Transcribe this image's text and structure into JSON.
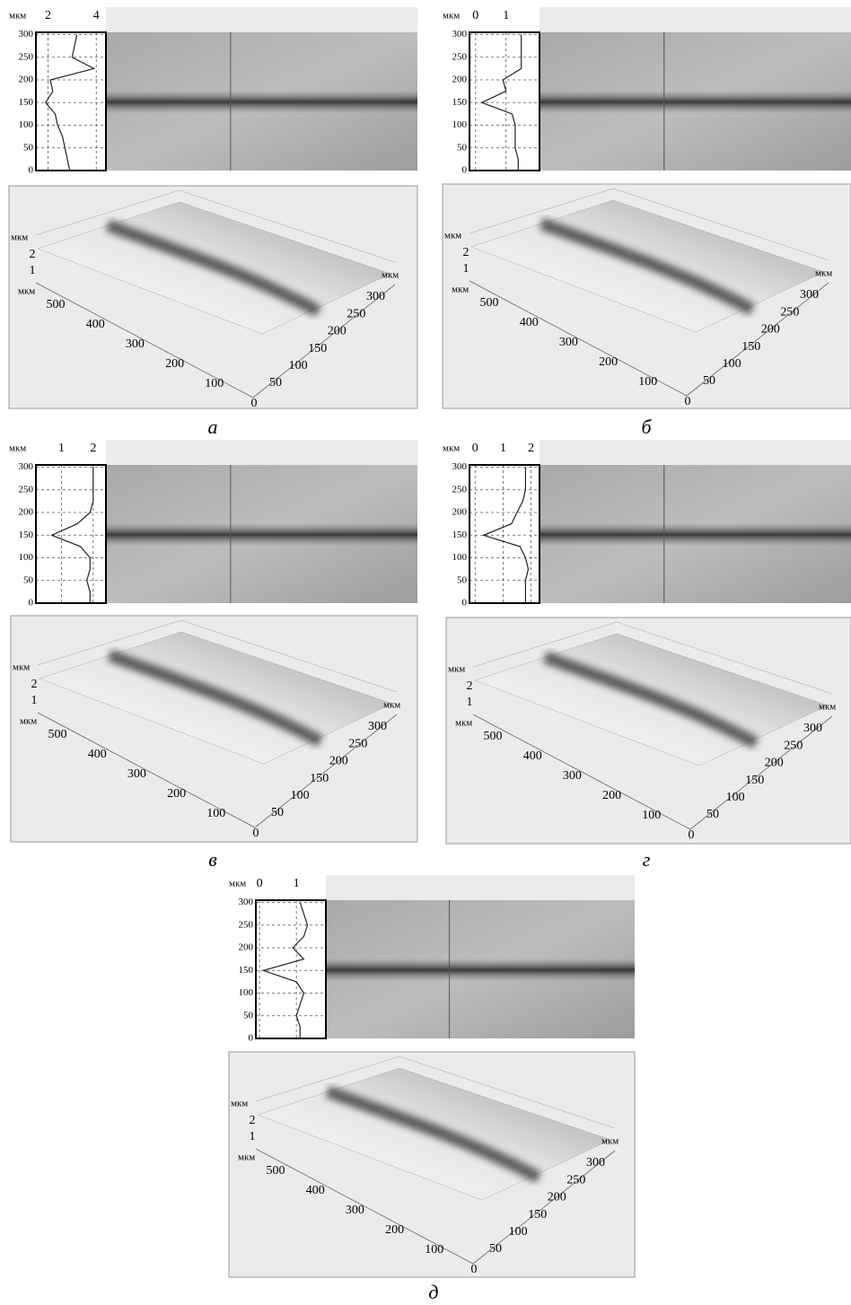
{
  "panels": [
    {
      "caption": "а",
      "profile": {
        "unit": "мкм",
        "xticks": [
          2,
          4
        ],
        "xlim": [
          1.5,
          4.4
        ],
        "yticks": [
          0,
          50,
          100,
          150,
          200,
          250,
          300
        ],
        "ylim": [
          0,
          305
        ],
        "y": [
          0,
          25,
          50,
          75,
          100,
          125,
          150,
          175,
          200,
          225,
          250,
          275,
          300
        ],
        "values": [
          2.9,
          2.8,
          2.7,
          2.6,
          2.4,
          2.3,
          1.9,
          2.2,
          2.1,
          3.9,
          3.0,
          3.1,
          3.2
        ]
      },
      "surface": {
        "z_unit": "мкм",
        "zticks": [
          2,
          1
        ],
        "x_unit": "мкм",
        "xticks": [
          500,
          400,
          300,
          200,
          100,
          0
        ],
        "yticks": [
          50,
          100,
          150,
          200,
          250,
          300
        ],
        "y_unit": "мкм"
      }
    },
    {
      "caption": "б",
      "profile": {
        "unit": "мкм",
        "xticks": [
          0,
          1
        ],
        "xlim": [
          -0.2,
          2.1
        ],
        "yticks": [
          0,
          50,
          100,
          150,
          200,
          250,
          300
        ],
        "ylim": [
          0,
          305
        ],
        "y": [
          0,
          25,
          50,
          75,
          100,
          125,
          150,
          175,
          200,
          225,
          250,
          275,
          300
        ],
        "values": [
          1.4,
          1.4,
          1.3,
          1.3,
          1.3,
          1.2,
          0.2,
          1.0,
          0.9,
          1.5,
          1.5,
          1.5,
          1.5
        ]
      },
      "surface": {
        "z_unit": "мкм",
        "zticks": [
          2,
          1
        ],
        "x_unit": "мкм",
        "xticks": [
          500,
          400,
          300,
          200,
          100,
          0
        ],
        "yticks": [
          50,
          100,
          150,
          200,
          250,
          300
        ],
        "y_unit": "мкм"
      }
    },
    {
      "caption": "в",
      "profile": {
        "unit": "мкм",
        "xticks": [
          1,
          2
        ],
        "xlim": [
          0.2,
          2.4
        ],
        "yticks": [
          0,
          50,
          100,
          150,
          200,
          250,
          300
        ],
        "ylim": [
          0,
          305
        ],
        "y": [
          0,
          25,
          50,
          75,
          100,
          125,
          150,
          175,
          200,
          225,
          250,
          275,
          300
        ],
        "values": [
          1.9,
          1.9,
          1.8,
          1.9,
          1.9,
          1.6,
          0.7,
          1.5,
          1.9,
          2.0,
          2.0,
          2.0,
          2.0
        ]
      },
      "surface": {
        "z_unit": "мкм",
        "zticks": [
          2,
          1
        ],
        "x_unit": "мкм",
        "xticks": [
          500,
          400,
          300,
          200,
          100,
          0
        ],
        "yticks": [
          50,
          100,
          150,
          200,
          250,
          300
        ],
        "y_unit": "мкм"
      }
    },
    {
      "caption": "г",
      "profile": {
        "unit": "мкм",
        "xticks": [
          0,
          1,
          2
        ],
        "xlim": [
          -0.2,
          2.3
        ],
        "yticks": [
          0,
          50,
          100,
          150,
          200,
          250,
          300
        ],
        "ylim": [
          0,
          305
        ],
        "y": [
          0,
          25,
          50,
          75,
          100,
          125,
          150,
          175,
          200,
          225,
          250,
          275,
          300
        ],
        "values": [
          1.8,
          1.8,
          1.8,
          1.9,
          1.8,
          1.6,
          0.3,
          1.3,
          1.5,
          1.7,
          1.8,
          1.8,
          1.8
        ]
      },
      "surface": {
        "z_unit": "мкм",
        "zticks": [
          2,
          1
        ],
        "x_unit": "мкм",
        "xticks": [
          500,
          400,
          300,
          200,
          100,
          0
        ],
        "yticks": [
          50,
          100,
          150,
          200,
          250,
          300
        ],
        "y_unit": "мкм"
      }
    },
    {
      "caption": "д",
      "profile": {
        "unit": "мкм",
        "xticks": [
          0,
          1
        ],
        "xlim": [
          -0.1,
          1.8
        ],
        "yticks": [
          0,
          50,
          100,
          150,
          200,
          250,
          300
        ],
        "ylim": [
          0,
          305
        ],
        "y": [
          0,
          25,
          50,
          75,
          100,
          125,
          150,
          175,
          200,
          225,
          250,
          275,
          300
        ],
        "values": [
          1.1,
          1.1,
          1.0,
          1.1,
          1.2,
          1.0,
          0.1,
          1.2,
          0.9,
          1.2,
          1.3,
          1.2,
          1.1
        ]
      },
      "surface": {
        "z_unit": "мкм",
        "zticks": [
          2,
          1
        ],
        "x_unit": "мкм",
        "xticks": [
          500,
          400,
          300,
          200,
          100,
          0
        ],
        "yticks": [
          50,
          100,
          150,
          200,
          250,
          300
        ],
        "y_unit": "мкм"
      }
    }
  ]
}
